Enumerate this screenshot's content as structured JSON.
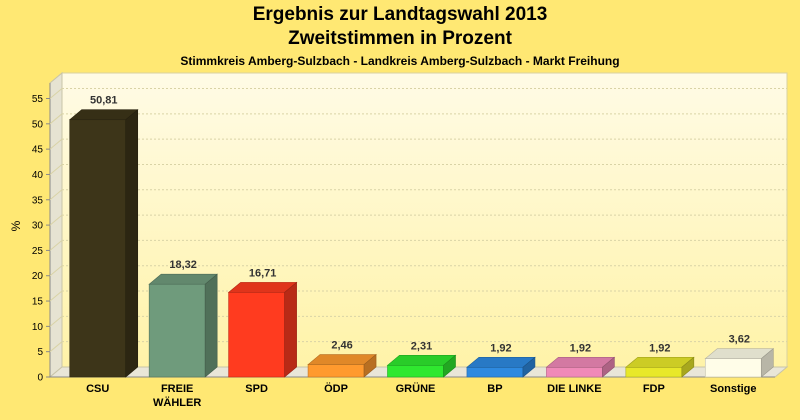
{
  "chart_data": {
    "type": "bar",
    "title": "Ergebnis zur Landtagswahl 2013",
    "subtitle": "Zweitstimmen in Prozent",
    "subsubtitle": "Stimmkreis Amberg-Sulzbach - Landkreis Amberg-Sulzbach - Markt Freihung",
    "ylabel": "%",
    "ylim": [
      0,
      55
    ],
    "yticks": [
      "0",
      "5",
      "10",
      "15",
      "20",
      "25",
      "30",
      "35",
      "40",
      "45",
      "50",
      "55"
    ],
    "grid": true,
    "categories": [
      [
        "CSU"
      ],
      [
        "FREIE",
        "WÄHLER"
      ],
      [
        "SPD"
      ],
      [
        "ÖDP"
      ],
      [
        "GRÜNE"
      ],
      [
        "BP"
      ],
      [
        "DIE LINKE"
      ],
      [
        "FDP"
      ],
      [
        "Sonstige"
      ]
    ],
    "values": [
      50.81,
      18.32,
      16.71,
      2.46,
      2.31,
      1.92,
      1.92,
      1.92,
      3.62
    ],
    "value_labels": [
      "50,81",
      "18,32",
      "16,71",
      "2,46",
      "2,31",
      "1,92",
      "1,92",
      "1,92",
      "3,62"
    ],
    "colors": [
      "#3d3519",
      "#6f9b7c",
      "#ff3b1f",
      "#ff9a2e",
      "#2fe82f",
      "#2e8ae0",
      "#f08ab8",
      "#e8e82a",
      "#fffde8"
    ]
  }
}
